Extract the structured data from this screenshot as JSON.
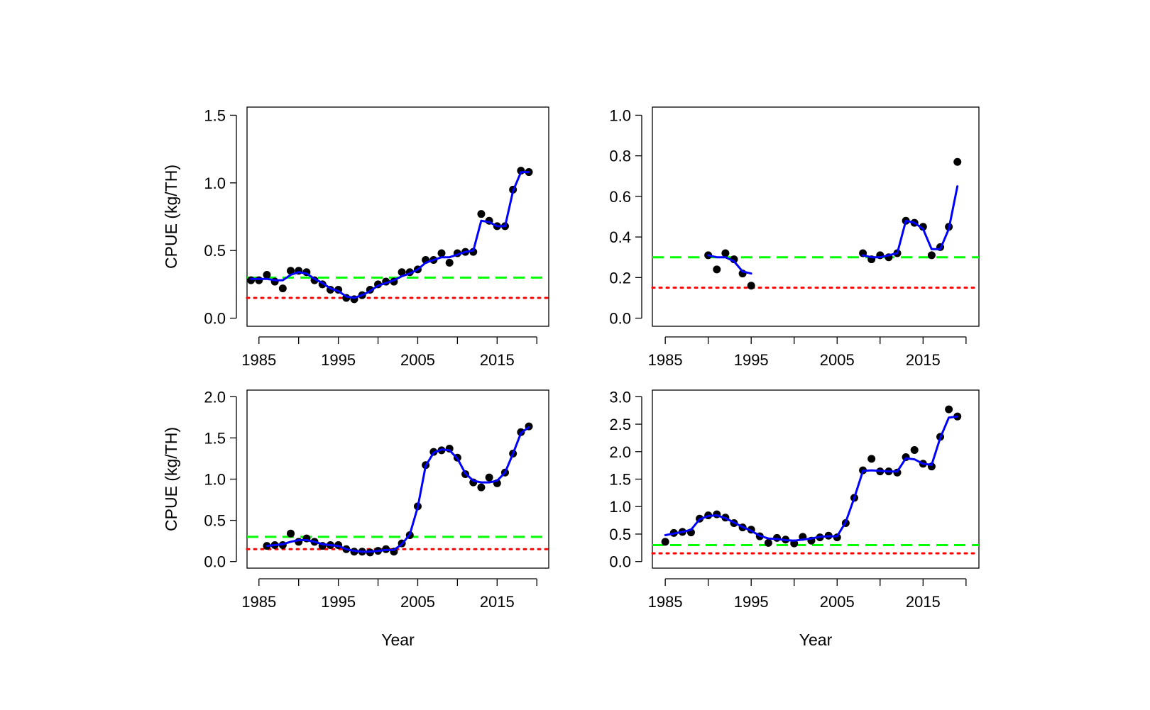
{
  "figure": {
    "xlabel": "Year",
    "ylabel": "CPUE (kg/TH)"
  },
  "colors": {
    "points": "#000000",
    "smooth": "#0000ff",
    "upper_reference": "#00ff00",
    "lower_reference": "#ff0000",
    "frame": "#000000"
  },
  "chart_data": [
    {
      "type": "scatter",
      "panel": "top-left",
      "xlim": [
        1983.5,
        2021.5
      ],
      "ylim": [
        0,
        1.5
      ],
      "xticks": [
        1985,
        1995,
        2005,
        2015
      ],
      "xticks_minor": [
        1990,
        2000,
        2010,
        2020
      ],
      "yticks": [
        0.0,
        0.5,
        1.0,
        1.5
      ],
      "ytick_labels": [
        "0.0",
        "0.5",
        "1.0",
        "1.5"
      ],
      "xlabel": "",
      "ylabel": "CPUE (kg/TH)",
      "reference_lines": {
        "upper": 0.3,
        "lower": 0.15
      },
      "points": {
        "x": [
          1984,
          1985,
          1986,
          1987,
          1988,
          1989,
          1990,
          1991,
          1992,
          1993,
          1994,
          1995,
          1996,
          1997,
          1998,
          1999,
          2000,
          2001,
          2002,
          2003,
          2004,
          2005,
          2006,
          2007,
          2008,
          2009,
          2010,
          2011,
          2012,
          2013,
          2014,
          2015,
          2016,
          2017,
          2018,
          2019
        ],
        "y": [
          0.28,
          0.28,
          0.32,
          0.27,
          0.22,
          0.35,
          0.35,
          0.34,
          0.28,
          0.25,
          0.21,
          0.21,
          0.15,
          0.14,
          0.17,
          0.21,
          0.25,
          0.27,
          0.27,
          0.34,
          0.34,
          0.36,
          0.43,
          0.43,
          0.48,
          0.41,
          0.48,
          0.49,
          0.49,
          0.77,
          0.72,
          0.68,
          0.68,
          0.95,
          1.09,
          1.08
        ]
      },
      "smooth": [
        {
          "x": [
            1984,
            1985,
            1986,
            1987,
            1988,
            1989,
            1990,
            1991,
            1992,
            1993,
            1994,
            1995,
            1996,
            1997,
            1998,
            1999,
            2000,
            2001,
            2002,
            2003,
            2004,
            2005,
            2006,
            2007,
            2008,
            2009,
            2010,
            2011,
            2012,
            2013,
            2014,
            2015,
            2016,
            2017,
            2018,
            2019
          ],
          "y": [
            0.29,
            0.29,
            0.29,
            0.28,
            0.28,
            0.32,
            0.34,
            0.33,
            0.29,
            0.26,
            0.22,
            0.2,
            0.16,
            0.15,
            0.17,
            0.2,
            0.24,
            0.26,
            0.28,
            0.31,
            0.33,
            0.36,
            0.41,
            0.43,
            0.45,
            0.45,
            0.47,
            0.49,
            0.5,
            0.72,
            0.71,
            0.68,
            0.68,
            0.94,
            1.08,
            1.08
          ]
        }
      ]
    },
    {
      "type": "scatter",
      "panel": "top-right",
      "xlim": [
        1983.5,
        2021.5
      ],
      "ylim": [
        0,
        1.0
      ],
      "xticks": [
        1985,
        1995,
        2005,
        2015
      ],
      "xticks_minor": [
        1990,
        2000,
        2010,
        2020
      ],
      "yticks": [
        0.0,
        0.2,
        0.4,
        0.6,
        0.8,
        1.0
      ],
      "ytick_labels": [
        "0.0",
        "0.2",
        "0.4",
        "0.6",
        "0.8",
        "1.0"
      ],
      "xlabel": "",
      "ylabel": "",
      "reference_lines": {
        "upper": 0.3,
        "lower": 0.15
      },
      "points": {
        "x": [
          1990,
          1991,
          1992,
          1993,
          1994,
          1995,
          2008,
          2009,
          2010,
          2011,
          2012,
          2013,
          2014,
          2015,
          2016,
          2017,
          2018,
          2019
        ],
        "y": [
          0.31,
          0.24,
          0.32,
          0.29,
          0.22,
          0.16,
          0.32,
          0.29,
          0.31,
          0.3,
          0.32,
          0.48,
          0.47,
          0.45,
          0.31,
          0.35,
          0.45,
          0.77
        ]
      },
      "smooth": [
        {
          "x": [
            1990,
            1991,
            1992,
            1993,
            1994,
            1995
          ],
          "y": [
            0.31,
            0.3,
            0.3,
            0.28,
            0.23,
            0.22
          ]
        },
        {
          "x": [
            2008,
            2009,
            2010,
            2011,
            2012,
            2013,
            2014,
            2015,
            2016,
            2017,
            2018,
            2019
          ],
          "y": [
            0.31,
            0.3,
            0.3,
            0.31,
            0.32,
            0.48,
            0.47,
            0.44,
            0.34,
            0.34,
            0.44,
            0.65
          ]
        }
      ]
    },
    {
      "type": "scatter",
      "panel": "bottom-left",
      "xlim": [
        1983.5,
        2021.5
      ],
      "ylim": [
        0,
        2.0
      ],
      "xticks": [
        1985,
        1995,
        2005,
        2015
      ],
      "xticks_minor": [
        1990,
        2000,
        2010,
        2020
      ],
      "yticks": [
        0.0,
        0.5,
        1.0,
        1.5,
        2.0
      ],
      "ytick_labels": [
        "0.0",
        "0.5",
        "1.0",
        "1.5",
        "2.0"
      ],
      "xlabel": "Year",
      "ylabel": "CPUE (kg/TH)",
      "reference_lines": {
        "upper": 0.3,
        "lower": 0.15
      },
      "points": {
        "x": [
          1986,
          1987,
          1988,
          1989,
          1990,
          1991,
          1992,
          1993,
          1994,
          1995,
          1996,
          1997,
          1998,
          1999,
          2000,
          2001,
          2002,
          2003,
          2004,
          2005,
          2006,
          2007,
          2008,
          2009,
          2010,
          2011,
          2012,
          2013,
          2014,
          2015,
          2016,
          2017,
          2018,
          2019
        ],
        "y": [
          0.19,
          0.2,
          0.2,
          0.34,
          0.24,
          0.28,
          0.24,
          0.19,
          0.2,
          0.2,
          0.15,
          0.12,
          0.12,
          0.11,
          0.13,
          0.15,
          0.12,
          0.22,
          0.32,
          0.67,
          1.17,
          1.33,
          1.35,
          1.37,
          1.26,
          1.06,
          0.96,
          0.9,
          1.02,
          0.95,
          1.08,
          1.31,
          1.57,
          1.64
        ]
      },
      "smooth": [
        {
          "x": [
            1986,
            1987,
            1988,
            1989,
            1990,
            1991,
            1992,
            1993,
            1994,
            1995,
            1996,
            1997,
            1998,
            1999,
            2000,
            2001,
            2002,
            2003,
            2004,
            2005,
            2006,
            2007,
            2008,
            2009,
            2010,
            2011,
            2012,
            2013,
            2014,
            2015,
            2016,
            2017,
            2018,
            2019
          ],
          "y": [
            0.19,
            0.2,
            0.21,
            0.24,
            0.26,
            0.26,
            0.24,
            0.21,
            0.2,
            0.19,
            0.15,
            0.13,
            0.12,
            0.12,
            0.13,
            0.14,
            0.14,
            0.21,
            0.33,
            0.66,
            1.16,
            1.32,
            1.36,
            1.35,
            1.25,
            1.07,
            0.98,
            0.96,
            0.96,
            0.98,
            1.08,
            1.31,
            1.56,
            1.63
          ]
        }
      ]
    },
    {
      "type": "scatter",
      "panel": "bottom-right",
      "xlim": [
        1983.5,
        2021.5
      ],
      "ylim": [
        0,
        3.0
      ],
      "xticks": [
        1985,
        1995,
        2005,
        2015
      ],
      "xticks_minor": [
        1990,
        2000,
        2010,
        2020
      ],
      "yticks": [
        0.0,
        0.5,
        1.0,
        1.5,
        2.0,
        2.5,
        3.0
      ],
      "ytick_labels": [
        "0.0",
        "0.5",
        "1.0",
        "1.5",
        "2.0",
        "2.5",
        "3.0"
      ],
      "xlabel": "Year",
      "ylabel": "",
      "reference_lines": {
        "upper": 0.3,
        "lower": 0.15
      },
      "points": {
        "x": [
          1985,
          1986,
          1987,
          1988,
          1989,
          1990,
          1991,
          1992,
          1993,
          1994,
          1995,
          1996,
          1997,
          1998,
          1999,
          2000,
          2001,
          2002,
          2003,
          2004,
          2005,
          2006,
          2007,
          2008,
          2009,
          2010,
          2011,
          2012,
          2013,
          2014,
          2015,
          2016,
          2017,
          2018,
          2019
        ],
        "y": [
          0.36,
          0.52,
          0.54,
          0.53,
          0.78,
          0.84,
          0.86,
          0.8,
          0.7,
          0.62,
          0.58,
          0.46,
          0.34,
          0.43,
          0.4,
          0.33,
          0.45,
          0.38,
          0.44,
          0.47,
          0.44,
          0.7,
          1.16,
          1.66,
          1.87,
          1.64,
          1.64,
          1.62,
          1.9,
          2.03,
          1.78,
          1.73,
          2.27,
          2.77,
          2.64
        ]
      },
      "smooth": [
        {
          "x": [
            1985,
            1986,
            1987,
            1988,
            1989,
            1990,
            1991,
            1992,
            1993,
            1994,
            1995,
            1996,
            1997,
            1998,
            1999,
            2000,
            2001,
            2002,
            2003,
            2004,
            2005,
            2006,
            2007,
            2008,
            2009,
            2010,
            2011,
            2012,
            2013,
            2014,
            2015,
            2016,
            2017,
            2018,
            2019
          ],
          "y": [
            0.48,
            0.51,
            0.54,
            0.58,
            0.77,
            0.83,
            0.84,
            0.79,
            0.71,
            0.63,
            0.56,
            0.47,
            0.42,
            0.41,
            0.39,
            0.38,
            0.4,
            0.42,
            0.45,
            0.46,
            0.46,
            0.72,
            1.16,
            1.65,
            1.66,
            1.65,
            1.64,
            1.64,
            1.88,
            1.86,
            1.78,
            1.76,
            2.25,
            2.62,
            2.64
          ]
        }
      ]
    }
  ]
}
